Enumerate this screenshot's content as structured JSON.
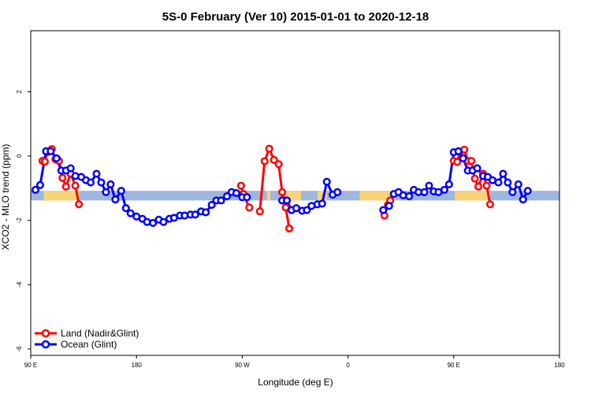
{
  "chart_data": {
    "type": "line",
    "title": "5S-0 February (Ver 10)   2015-01-01 to 2020-12-18",
    "xlabel": "Longitude (deg E)",
    "ylabel": "XCO2 - MLO trend (ppm)",
    "xlim": [
      90,
      540
    ],
    "ylim": [
      -6.2,
      3.9
    ],
    "x_ticks": [
      {
        "value": 90,
        "label": "90 E"
      },
      {
        "value": 180,
        "label": "180"
      },
      {
        "value": 270,
        "label": "90 W"
      },
      {
        "value": 360,
        "label": "0"
      },
      {
        "value": 450,
        "label": "90 E"
      },
      {
        "value": 540,
        "label": "180"
      }
    ],
    "y_ticks": [
      {
        "value": -6,
        "label": "-6"
      },
      {
        "value": -4,
        "label": "-4"
      },
      {
        "value": -2,
        "label": "-2"
      },
      {
        "value": 0,
        "label": "0"
      },
      {
        "value": 2,
        "label": "2"
      }
    ],
    "grid": false,
    "legend_position": "bottom-left",
    "band": {
      "y_low": -1.38,
      "y_high": -1.08,
      "color": "#9fb6de",
      "land_color": "#f8d478"
    },
    "land_shading": [
      [
        101,
        131
      ],
      [
        291,
        294
      ],
      [
        307,
        320
      ],
      [
        334,
        342
      ],
      [
        370,
        400
      ],
      [
        451,
        481
      ]
    ],
    "series": [
      {
        "name": "Land (Nadir&Glint)",
        "color": "#ff0000",
        "segments": [
          [
            [
              100,
              -0.15
            ],
            [
              102,
              -0.17
            ],
            [
              104,
              0.12
            ],
            [
              108,
              0.22
            ],
            [
              111,
              -0.1
            ],
            [
              114,
              -0.15
            ],
            [
              117,
              -0.68
            ],
            [
              120,
              -0.95
            ],
            [
              124,
              -0.55
            ],
            [
              128,
              -0.92
            ],
            [
              131,
              -1.5
            ]
          ],
          [
            [
              269,
              -0.92
            ],
            [
              271,
              -1.18
            ],
            [
              276,
              -1.6
            ]
          ],
          [
            [
              285,
              -1.72
            ],
            [
              289,
              -0.16
            ],
            [
              293,
              0.23
            ],
            [
              297,
              -0.12
            ],
            [
              301,
              -0.25
            ],
            [
              304,
              -1.12
            ],
            [
              307,
              -1.6
            ],
            [
              310,
              -2.25
            ]
          ],
          [
            [
              391,
              -1.85
            ],
            [
              394,
              -1.52
            ],
            [
              396,
              -1.38
            ]
          ],
          [
            [
              450,
              -0.15
            ],
            [
              453,
              -0.18
            ],
            [
              455,
              0.12
            ],
            [
              459,
              0.2
            ],
            [
              462,
              -0.15
            ],
            [
              465,
              -0.15
            ],
            [
              468,
              -0.7
            ],
            [
              471,
              -0.95
            ],
            [
              475,
              -0.55
            ],
            [
              478,
              -0.92
            ],
            [
              481,
              -1.5
            ]
          ]
        ]
      },
      {
        "name": "Ocean (Glint)",
        "color": "#0000ff",
        "segments": [
          [
            [
              94,
              -1.05
            ],
            [
              98,
              -0.9
            ],
            [
              103,
              0.15
            ],
            [
              107,
              0.15
            ],
            [
              112,
              -0.07
            ],
            [
              116,
              -0.45
            ],
            [
              120,
              -0.45
            ],
            [
              124,
              -0.38
            ],
            [
              128,
              -0.62
            ],
            [
              133,
              -0.65
            ],
            [
              137,
              -0.75
            ],
            [
              141,
              -0.82
            ],
            [
              146,
              -0.55
            ],
            [
              150,
              -0.82
            ],
            [
              154,
              -1.12
            ],
            [
              158,
              -0.88
            ],
            [
              162,
              -1.35
            ],
            [
              167,
              -1.08
            ],
            [
              171,
              -1.62
            ],
            [
              175,
              -1.78
            ],
            [
              180,
              -1.88
            ],
            [
              185,
              -1.95
            ],
            [
              189,
              -2.05
            ],
            [
              194,
              -2.08
            ],
            [
              199,
              -1.98
            ],
            [
              203,
              -2.05
            ],
            [
              208,
              -1.95
            ],
            [
              212,
              -1.92
            ],
            [
              217,
              -1.85
            ],
            [
              221,
              -1.85
            ],
            [
              226,
              -1.82
            ],
            [
              230,
              -1.82
            ],
            [
              235,
              -1.72
            ],
            [
              239,
              -1.75
            ],
            [
              244,
              -1.52
            ],
            [
              248,
              -1.38
            ],
            [
              252,
              -1.38
            ],
            [
              257,
              -1.25
            ],
            [
              261,
              -1.12
            ],
            [
              265,
              -1.15
            ],
            [
              270,
              -1.28
            ],
            [
              274,
              -1.28
            ]
          ],
          [
            [
              304,
              -1.38
            ],
            [
              308,
              -1.38
            ],
            [
              312,
              -1.68
            ],
            [
              316,
              -1.62
            ],
            [
              321,
              -1.7
            ],
            [
              325,
              -1.68
            ],
            [
              329,
              -1.55
            ],
            [
              334,
              -1.5
            ],
            [
              338,
              -1.48
            ],
            [
              342,
              -0.8
            ],
            [
              347,
              -1.2
            ],
            [
              351,
              -1.12
            ]
          ],
          [
            [
              390,
              -1.68
            ],
            [
              395,
              -1.55
            ],
            [
              399,
              -1.18
            ],
            [
              403,
              -1.12
            ],
            [
              407,
              -1.22
            ],
            [
              412,
              -1.25
            ],
            [
              416,
              -1.05
            ],
            [
              420,
              -1.12
            ],
            [
              425,
              -1.12
            ],
            [
              429,
              -0.92
            ],
            [
              433,
              -1.1
            ],
            [
              437,
              -1.12
            ],
            [
              442,
              -1.05
            ],
            [
              446,
              -0.88
            ],
            [
              450,
              0.12
            ],
            [
              454,
              0.15
            ],
            [
              458,
              -0.07
            ],
            [
              462,
              -0.45
            ],
            [
              466,
              -0.45
            ],
            [
              470,
              -0.38
            ],
            [
              475,
              -0.62
            ],
            [
              479,
              -0.65
            ],
            [
              483,
              -0.75
            ],
            [
              488,
              -0.82
            ],
            [
              492,
              -0.55
            ],
            [
              496,
              -0.82
            ],
            [
              500,
              -1.12
            ],
            [
              505,
              -0.88
            ],
            [
              509,
              -1.35
            ],
            [
              513,
              -1.08
            ]
          ]
        ]
      }
    ]
  }
}
